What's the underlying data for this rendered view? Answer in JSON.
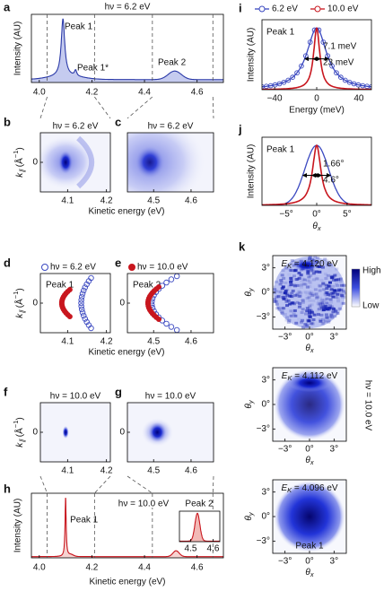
{
  "figure": {
    "a": {
      "label": "a",
      "title": "hν = 6.2 eV",
      "ylabel": "Intensity (AU)",
      "annotations": [
        "Peak 1",
        "Peak 1*",
        "Peak 2"
      ],
      "xlim": [
        3.97,
        4.7
      ],
      "xticks": [
        {
          "value": 4.0,
          "label": "4.0"
        },
        4.2,
        4.4,
        4.6
      ]
    },
    "bc": {
      "ylabel": [
        {
          "t": "k",
          "style": "i"
        },
        {
          "t": "∥",
          "style": "sub"
        },
        {
          "t": " (Å"
        },
        {
          "t": "−1",
          "style": "sup"
        },
        {
          "t": ")"
        }
      ],
      "xlabel": "Kinetic energy (eV)",
      "panels": [
        {
          "label": "b",
          "title": "hν = 6.2 eV",
          "xlim": [
            4.03,
            4.21
          ],
          "ylim": [
            -0.15,
            0.15
          ],
          "xticks": [
            4.1,
            4.2
          ],
          "yticks": [
            0
          ]
        },
        {
          "label": "c",
          "title": "hν = 6.2 eV",
          "xlim": [
            4.43,
            4.66
          ],
          "ylim": [
            -0.15,
            0.15
          ],
          "xticks": [
            4.5,
            4.6
          ]
        }
      ]
    },
    "de": {
      "ylabel": [
        {
          "t": "k",
          "style": "i"
        },
        {
          "t": "∥",
          "style": "sub"
        },
        {
          "t": " (Å"
        },
        {
          "t": "−1",
          "style": "sup"
        },
        {
          "t": ")"
        }
      ],
      "xlabel": "Kinetic energy (eV)",
      "legend": [
        {
          "name": "hν = 6.2 eV",
          "color": "#3a48c0",
          "marker": "open"
        },
        {
          "name": "hν = 10.0 eV",
          "color": "#c8161e",
          "marker": "filled"
        }
      ],
      "panels": [
        {
          "label": "d",
          "annotation": "Peak 1",
          "xlim": [
            4.03,
            4.21
          ],
          "ylim": [
            -0.15,
            0.15
          ],
          "xticks": [
            4.1,
            4.2
          ],
          "yticks": [
            0
          ]
        },
        {
          "label": "e",
          "annotation": "Peak 2",
          "xlim": [
            4.43,
            4.66
          ],
          "ylim": [
            -0.15,
            0.15
          ],
          "xticks": [
            4.5,
            4.6
          ],
          "yticks": [
            0
          ]
        }
      ]
    },
    "fg": {
      "ylabel": [
        {
          "t": "k",
          "style": "i"
        },
        {
          "t": "∥",
          "style": "sub"
        },
        {
          "t": " (Å"
        },
        {
          "t": "−1",
          "style": "sup"
        },
        {
          "t": ")"
        }
      ],
      "panels": [
        {
          "label": "f",
          "title": "hν = 10.0 eV",
          "xlim": [
            4.03,
            4.21
          ],
          "ylim": [
            -0.15,
            0.15
          ],
          "xticks": [
            4.1,
            4.2
          ],
          "yticks": [
            0
          ]
        },
        {
          "label": "g",
          "title": "hν = 10.0 eV",
          "xlim": [
            4.43,
            4.66
          ],
          "ylim": [
            -0.15,
            0.15
          ],
          "xticks": [
            4.5,
            4.6
          ],
          "yticks": [
            0
          ]
        }
      ]
    },
    "h": {
      "label": "h",
      "ylabel": "Intensity (AU)",
      "xlabel": "Kinetic energy (eV)",
      "annotations": [
        "Peak 1",
        "hν = 10.0 eV",
        "Peak 2"
      ],
      "xlim": [
        3.97,
        4.7
      ],
      "xticks": [
        {
          "value": 4.0,
          "label": "4.0"
        },
        4.2,
        4.4,
        4.6
      ],
      "inset": {
        "xlim": [
          4.45,
          4.63
        ],
        "xticks": [
          4.5,
          4.6
        ]
      }
    },
    "i": {
      "label": "i",
      "legend": [
        {
          "name": "6.2 eV",
          "color": "#3a48c0"
        },
        {
          "name": "10.0 eV",
          "color": "#c8161e"
        }
      ],
      "annotation": "Peak 1",
      "widths": [
        {
          "text": "7.1 meV",
          "fwhm": 7.1,
          "color": "#c8161e"
        },
        {
          "text": "23 meV",
          "fwhm": 23,
          "color": "#3a48c0"
        }
      ],
      "xlabel": "Energy (meV)",
      "ylabel": "Intensity (AU)",
      "xlim": [
        -52,
        52
      ],
      "xticks": [
        {
          "value": -40,
          "label": "−40"
        },
        0,
        40
      ]
    },
    "j": {
      "label": "j",
      "annotation": "Peak 1",
      "widths": [
        {
          "text": "1.66°",
          "fwhm": 1.66,
          "color": "#c8161e"
        },
        {
          "text": "4.6°",
          "fwhm": 4.6,
          "color": "#3a48c0"
        }
      ],
      "xlabel": [
        {
          "t": "θ",
          "style": "i"
        },
        {
          "t": "x",
          "style": "sub"
        }
      ],
      "ylabel": "Intensity (AU)",
      "xlim": [
        -9,
        9
      ],
      "xticks": [
        {
          "value": -5,
          "label": "−5°"
        },
        {
          "value": 0,
          "label": "0°"
        },
        {
          "value": 5,
          "label": "5°"
        }
      ]
    },
    "k": {
      "label": "k",
      "colorbar": {
        "high": "High",
        "low": "Low"
      },
      "side_label": "hν = 10.0 eV",
      "xlabel": [
        {
          "t": "θ",
          "style": "i"
        },
        {
          "t": "x",
          "style": "sub"
        }
      ],
      "ylabel": [
        {
          "t": "θ",
          "style": "i"
        },
        {
          "t": "y",
          "style": "sub"
        }
      ],
      "xlim": [
        -4.5,
        4.5
      ],
      "ylim": [
        -4.5,
        4.5
      ],
      "xticks": [
        {
          "value": -3,
          "label": "−3°"
        },
        {
          "value": 0,
          "label": "0°"
        },
        {
          "value": 3,
          "label": "3°"
        }
      ],
      "yticks": [
        {
          "value": -3,
          "label": "−3°"
        },
        {
          "value": 0,
          "label": "0°"
        },
        {
          "value": 3,
          "label": "3°"
        }
      ],
      "maps": [
        {
          "energy": [
            {
              "t": "E",
              "style": "i"
            },
            {
              "t": "K",
              "style": "sub"
            },
            {
              "t": " = 4.120 eV"
            }
          ]
        },
        {
          "energy": [
            {
              "t": "E",
              "style": "i"
            },
            {
              "t": "K",
              "style": "sub"
            },
            {
              "t": " = 4.112 eV"
            }
          ]
        },
        {
          "energy": [
            {
              "t": "E",
              "style": "i"
            },
            {
              "t": "K",
              "style": "sub"
            },
            {
              "t": " = 4.096 eV"
            }
          ],
          "annotation": "Peak 1"
        }
      ]
    }
  }
}
